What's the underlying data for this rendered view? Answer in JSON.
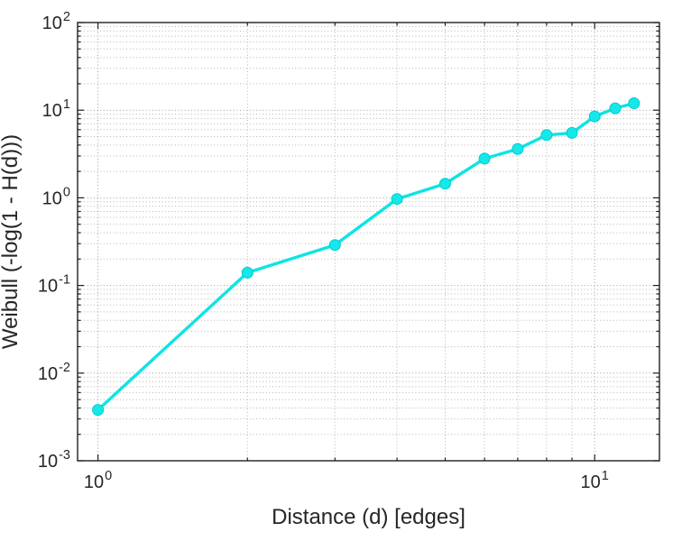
{
  "chart_data": {
    "type": "line",
    "title": "",
    "xlabel": "Distance (d) [edges]",
    "ylabel": "Weibull (-log(1 - H(d)))",
    "xscale": "log",
    "yscale": "log",
    "xlim": [
      0.91,
      13.5
    ],
    "ylim": [
      0.001,
      100
    ],
    "x": [
      1,
      2,
      3,
      4,
      5,
      6,
      7,
      8,
      9,
      10,
      11,
      12
    ],
    "y": [
      0.0038,
      0.14,
      0.29,
      0.97,
      1.45,
      2.8,
      3.6,
      5.2,
      5.5,
      8.5,
      10.5,
      12.0
    ],
    "x_tick_values": [
      1,
      10
    ],
    "x_tick_labels": [
      "10^0",
      "10^1"
    ],
    "y_tick_values": [
      0.001,
      0.01,
      0.1,
      1,
      10,
      100
    ],
    "y_tick_labels": [
      "10^-3",
      "10^-2",
      "10^-1",
      "10^0",
      "10^1",
      "10^2"
    ],
    "grid": true,
    "minor_grid": true,
    "grid_style": "dotted",
    "legend": false,
    "marker": "o",
    "colors": {
      "line": "#0de4e4",
      "marker_fill": "#14e8e8",
      "marker_edge": "#00ccd2",
      "axis": "#1f1f1f",
      "grid_major": "#9c9c9c",
      "grid_minor": "#b4b4b4",
      "label": "#262626"
    }
  }
}
